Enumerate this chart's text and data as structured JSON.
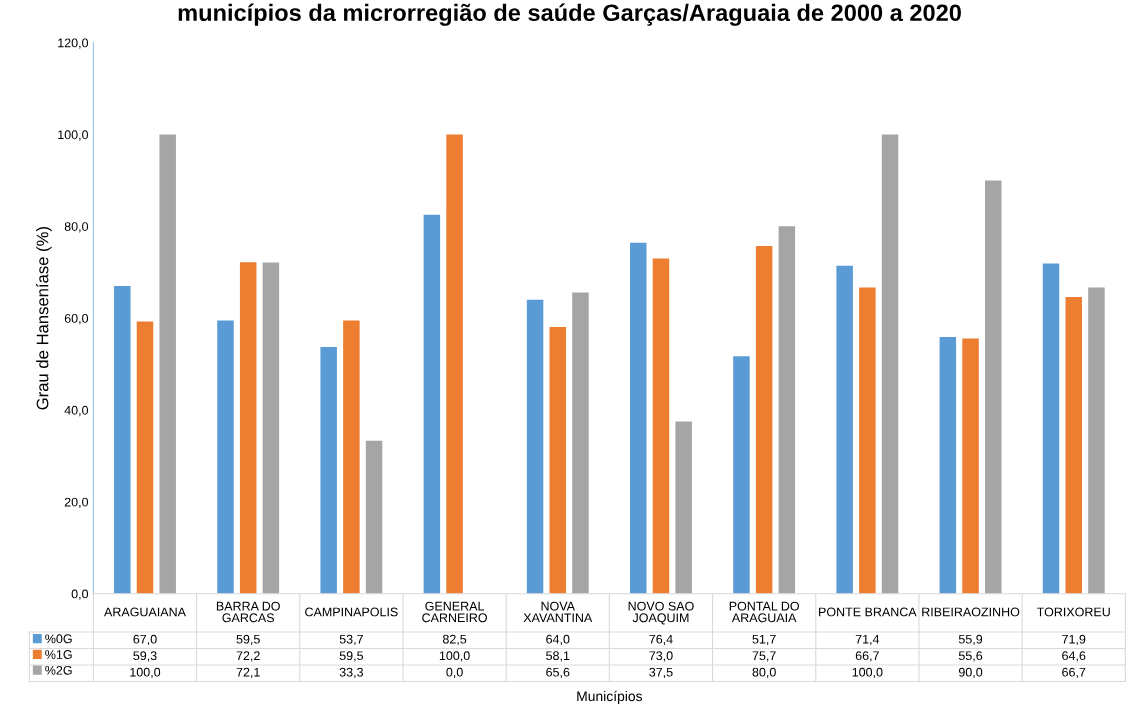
{
  "chart_data": {
    "type": "bar",
    "title": "municípios da microrregião de saúde Garças/Araguaia de 2000 a 2020",
    "xlabel": "Municípios",
    "ylabel": "Grau de Hanseníase (%)",
    "categories": [
      "ARAGUAIANA",
      "BARRA DO GARCAS",
      "CAMPINAPOLIS",
      "GENERAL CARNEIRO",
      "NOVA XAVANTINA",
      "NOVO SAO JOAQUIM",
      "PONTAL DO ARAGUAIA",
      "PONTE BRANCA",
      "RIBEIRAOZINHO",
      "TORIXOREU"
    ],
    "series": [
      {
        "name": "%0G",
        "color": "#5b9bd5",
        "values": [
          67.0,
          59.5,
          53.7,
          82.5,
          64.0,
          76.4,
          51.7,
          71.4,
          55.9,
          71.9
        ],
        "value_labels": [
          "67,0",
          "59,5",
          "53,7",
          "82,5",
          "64,0",
          "76,4",
          "51,7",
          "71,4",
          "55,9",
          "71,9"
        ]
      },
      {
        "name": "%1G",
        "color": "#ed7d31",
        "values": [
          59.3,
          72.2,
          59.5,
          100.0,
          58.1,
          73.0,
          75.7,
          66.7,
          55.6,
          64.6
        ],
        "value_labels": [
          "59,3",
          "72,2",
          "59,5",
          "100,0",
          "58,1",
          "73,0",
          "75,7",
          "66,7",
          "55,6",
          "64,6"
        ]
      },
      {
        "name": "%2G",
        "color": "#a5a5a5",
        "values": [
          100.0,
          72.1,
          33.3,
          0.0,
          65.6,
          37.5,
          80.0,
          100.0,
          90.0,
          66.7
        ],
        "value_labels": [
          "100,0",
          "72,1",
          "33,3",
          "0,0",
          "65,6",
          "37,5",
          "80,0",
          "100,0",
          "90,0",
          "66,7"
        ]
      }
    ],
    "ylim": [
      0,
      120
    ],
    "yticks": [
      {
        "value": 0,
        "label": "0,0"
      },
      {
        "value": 20,
        "label": "20,0"
      },
      {
        "value": 40,
        "label": "40,0"
      },
      {
        "value": 60,
        "label": "60,0"
      },
      {
        "value": 80,
        "label": "80,0"
      },
      {
        "value": 100,
        "label": "100,0"
      },
      {
        "value": 120,
        "label": "120,0"
      }
    ],
    "grid": false,
    "legend": "bottom"
  }
}
